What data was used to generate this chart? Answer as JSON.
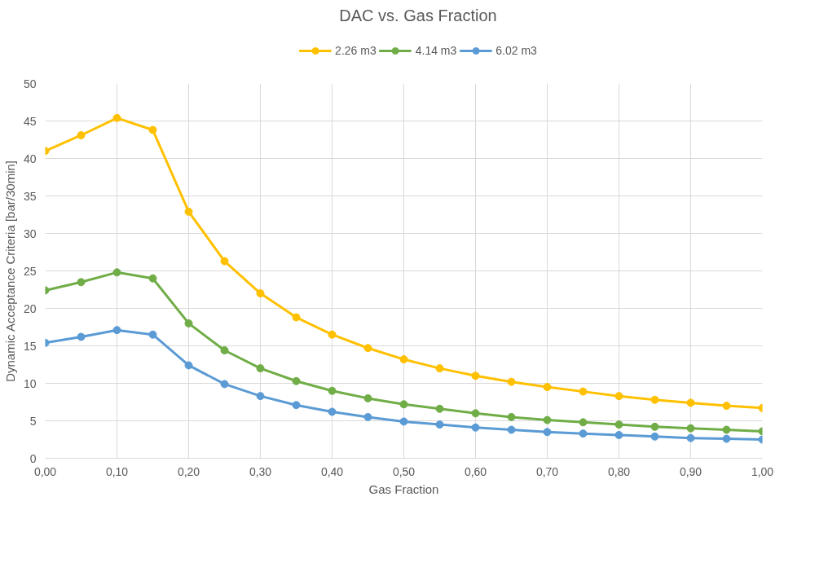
{
  "chart_data": {
    "type": "line",
    "title": "DAC vs. Gas Fraction",
    "xlabel": "Gas Fraction",
    "ylabel": "Dynamic Acceptance Criteria [bar/30min]",
    "x": [
      0,
      0.05,
      0.1,
      0.15,
      0.2,
      0.25,
      0.3,
      0.35,
      0.4,
      0.45,
      0.5,
      0.55,
      0.6,
      0.65,
      0.7,
      0.75,
      0.8,
      0.85,
      0.9,
      0.95,
      1.0
    ],
    "series": [
      {
        "name": "2.26 m3",
        "color": "#ffc000",
        "values": [
          41.0,
          43.1,
          45.4,
          43.8,
          32.9,
          26.3,
          22.0,
          18.8,
          16.5,
          14.7,
          13.2,
          12.0,
          11.0,
          10.2,
          9.5,
          8.9,
          8.3,
          7.8,
          7.4,
          7.0,
          6.7
        ]
      },
      {
        "name": "4.14 m3",
        "color": "#70ad47",
        "values": [
          22.4,
          23.5,
          24.8,
          24.0,
          18.0,
          14.4,
          12.0,
          10.3,
          9.0,
          8.0,
          7.2,
          6.6,
          6.0,
          5.5,
          5.1,
          4.8,
          4.5,
          4.2,
          4.0,
          3.8,
          3.6
        ]
      },
      {
        "name": "6.02 m3",
        "color": "#5b9bd5",
        "values": [
          15.4,
          16.2,
          17.1,
          16.5,
          12.4,
          9.9,
          8.3,
          7.1,
          6.2,
          5.5,
          4.9,
          4.5,
          4.1,
          3.8,
          3.5,
          3.3,
          3.1,
          2.9,
          2.7,
          2.6,
          2.5
        ]
      }
    ],
    "xlim": [
      0,
      1
    ],
    "ylim": [
      0,
      50
    ],
    "xticks": [
      {
        "value": 0,
        "label": "0,00"
      },
      {
        "value": 0.1,
        "label": "0,10"
      },
      {
        "value": 0.2,
        "label": "0,20"
      },
      {
        "value": 0.3,
        "label": "0,30"
      },
      {
        "value": 0.4,
        "label": "0,40"
      },
      {
        "value": 0.5,
        "label": "0,50"
      },
      {
        "value": 0.6,
        "label": "0,60"
      },
      {
        "value": 0.7,
        "label": "0,70"
      },
      {
        "value": 0.8,
        "label": "0,80"
      },
      {
        "value": 0.9,
        "label": "0,90"
      },
      {
        "value": 1.0,
        "label": "1,00"
      }
    ],
    "yticks": [
      0,
      5,
      10,
      15,
      20,
      25,
      30,
      35,
      40,
      45,
      50
    ],
    "grid": true,
    "legend": "top",
    "marker": "circle",
    "line_style": "solid"
  }
}
